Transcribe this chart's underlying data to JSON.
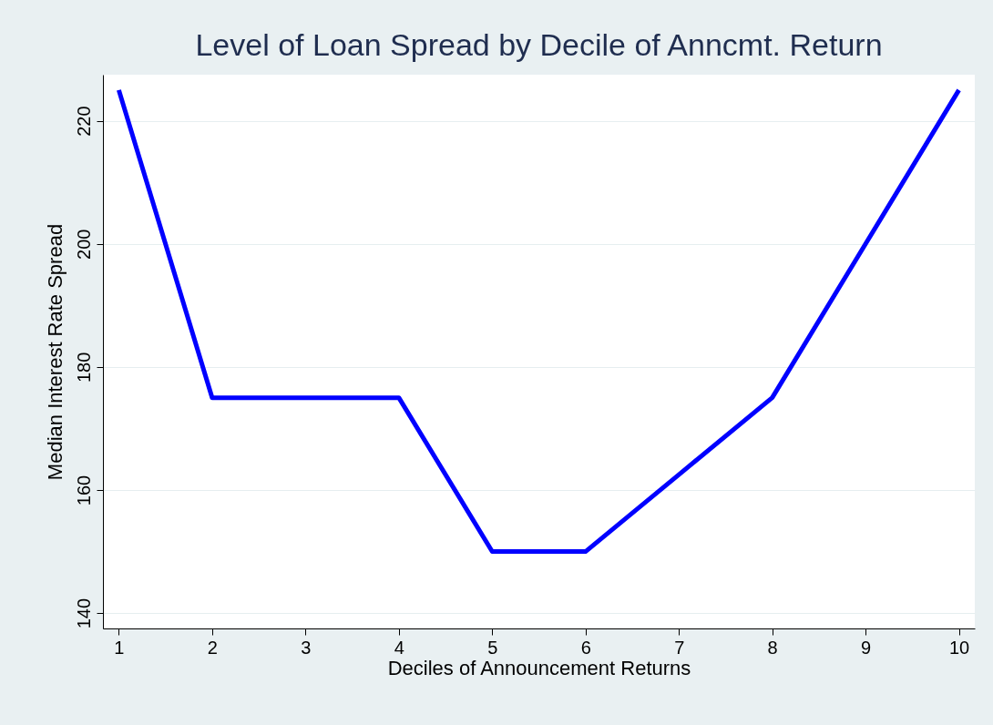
{
  "chart_data": {
    "type": "line",
    "title": "Level of Loan Spread by Decile of Anncmt. Return",
    "xlabel": "Deciles of Announcement Returns",
    "ylabel": "Median Interest Rate Spread",
    "x": [
      1,
      2,
      3,
      4,
      5,
      6,
      7,
      8,
      9,
      10
    ],
    "series": [
      {
        "color": "#0000ff",
        "values": [
          225,
          175,
          175,
          175,
          150,
          150,
          162.5,
          175,
          200,
          225
        ]
      }
    ],
    "xlim": [
      0.83,
      10.17
    ],
    "xticks": [
      1,
      2,
      3,
      4,
      5,
      6,
      7,
      8,
      9,
      10
    ],
    "ylim": [
      137.5,
      227.5
    ],
    "yticks": [
      140,
      160,
      180,
      200,
      220
    ],
    "grid": "y",
    "marker": "none",
    "line_style": "solid"
  }
}
